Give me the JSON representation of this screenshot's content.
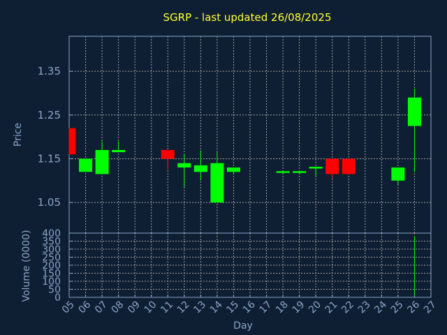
{
  "chart_data": [
    {
      "type": "candlestick",
      "title": "SGRP - last updated 26/08/2025",
      "ylabel": "Price",
      "xlabel": "Day",
      "ylim": [
        0.98,
        1.43
      ],
      "yticks": [
        "1.05",
        "1.15",
        "1.25",
        "1.35"
      ],
      "x_categories": [
        "05",
        "06",
        "07",
        "08",
        "09",
        "10",
        "11",
        "12",
        "13",
        "14",
        "15",
        "16",
        "17",
        "18",
        "19",
        "20",
        "21",
        "22",
        "23",
        "24",
        "25",
        "26",
        "27"
      ],
      "grid": true,
      "colors": {
        "up": "#00ff00",
        "down": "#ff0000",
        "background": "#0f1f33",
        "grid": "#a0a0a0",
        "axis": "#8aa4c8",
        "title": "#ffff33"
      },
      "candles": [
        {
          "day": "05",
          "open": 1.22,
          "high": 1.22,
          "low": 1.16,
          "close": 1.16
        },
        {
          "day": "06",
          "open": 1.12,
          "high": 1.15,
          "low": 1.12,
          "close": 1.15
        },
        {
          "day": "07",
          "open": 1.115,
          "high": 1.19,
          "low": 1.115,
          "close": 1.17
        },
        {
          "day": "08",
          "open": 1.165,
          "high": 1.19,
          "low": 1.165,
          "close": 1.17
        },
        {
          "day": "11",
          "open": 1.17,
          "high": 1.17,
          "low": 1.125,
          "close": 1.15
        },
        {
          "day": "12",
          "open": 1.13,
          "high": 1.16,
          "low": 1.085,
          "close": 1.14
        },
        {
          "day": "13",
          "open": 1.12,
          "high": 1.17,
          "low": 1.1,
          "close": 1.135
        },
        {
          "day": "14",
          "open": 1.05,
          "high": 1.165,
          "low": 1.05,
          "close": 1.14
        },
        {
          "day": "15",
          "open": 1.12,
          "high": 1.13,
          "low": 1.115,
          "close": 1.13
        },
        {
          "day": "18",
          "open": 1.12,
          "high": 1.12,
          "low": 1.115,
          "close": 1.12
        },
        {
          "day": "19",
          "open": 1.118,
          "high": 1.122,
          "low": 1.115,
          "close": 1.12
        },
        {
          "day": "20",
          "open": 1.128,
          "high": 1.132,
          "low": 1.11,
          "close": 1.13
        },
        {
          "day": "21",
          "open": 1.15,
          "high": 1.15,
          "low": 1.105,
          "close": 1.115
        },
        {
          "day": "22",
          "open": 1.15,
          "high": 1.15,
          "low": 1.115,
          "close": 1.115
        },
        {
          "day": "25",
          "open": 1.1,
          "high": 1.13,
          "low": 1.09,
          "close": 1.13
        },
        {
          "day": "26",
          "open": 1.225,
          "high": 1.31,
          "low": 1.12,
          "close": 1.29
        }
      ]
    },
    {
      "type": "bar",
      "ylabel": "Volume (0000)",
      "ylim": [
        0,
        400
      ],
      "yticks": [
        "0",
        "50",
        "100",
        "150",
        "200",
        "250",
        "300",
        "350",
        "400"
      ],
      "bars": [
        {
          "day": "26",
          "value": 380
        }
      ]
    }
  ]
}
